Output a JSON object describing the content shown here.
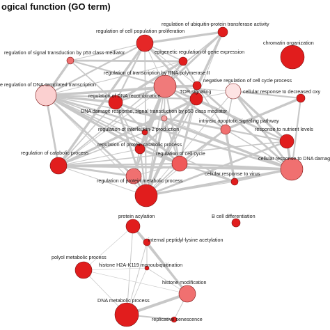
{
  "title": "ogical function (GO term)",
  "colors": {
    "edge": "#c8c8c8",
    "node_stroke": "#7a1010",
    "label": "#1a1a1a",
    "node_dark": "#e11d1d",
    "node_mid": "#f05a5a",
    "node_light": "#f6a0a0",
    "node_pale": "#fde3e3"
  },
  "network_top": {
    "nodes": [
      {
        "id": "ubiq",
        "label": "regulation of ubiquitin-protein transferase activity",
        "color": "#e11d1d"
      },
      {
        "id": "cellprolif",
        "label": "regulation of cell population proliferation",
        "color": "#e52727"
      },
      {
        "id": "chromatin",
        "label": "chromatin organization",
        "color": "#e11d1d"
      },
      {
        "id": "p53sig",
        "label": "regulation of signal transduction by p53 class mediator",
        "color": "#f07070"
      },
      {
        "id": "epigen",
        "label": "epigenetic regulation of gene expression",
        "color": "#e11d1d"
      },
      {
        "id": "rnapol",
        "label": "regulation of transcription by RNA polymerase II",
        "color": "#f07a7a"
      },
      {
        "id": "dnatemp",
        "label": "e regulation of DNA-templated transcription",
        "color": "#fbd0d0"
      },
      {
        "id": "negcycle",
        "label": "negative regulation of cell cycle process",
        "color": "#e11d1d"
      },
      {
        "id": "dnarecomb",
        "label": "regulation of DNA recombination",
        "color": "#e11d1d"
      },
      {
        "id": "tor",
        "label": "TOR signaling",
        "color": "#e11d1d"
      },
      {
        "id": "oxy",
        "label": "cellular response to decreased oxy",
        "color": "#fde3e3"
      },
      {
        "id": "oxy_small",
        "label": "",
        "color": "#e11d1d"
      },
      {
        "id": "dnadamage_p53",
        "label": "DNA damage response, signal transduction by p53 class mediator",
        "color": "#f6a0a0"
      },
      {
        "id": "apoptotic",
        "label": "intrinsic apoptotic signaling pathway",
        "color": "#f07070"
      },
      {
        "id": "il2",
        "label": "regulation of interleukin-2 production",
        "color": "#e11d1d"
      },
      {
        "id": "nutrient",
        "label": "response to nutrient levels",
        "color": "#e11d1d"
      },
      {
        "id": "catabolic_prot",
        "label": "regulation of protein catabolic process",
        "color": "#e11d1d"
      },
      {
        "id": "catabolic",
        "label": "regulation of catabolic process",
        "color": "#e11d1d"
      },
      {
        "id": "cellcycle",
        "label": "regulation of cell cycle",
        "color": "#f05a5a"
      },
      {
        "id": "dnastim",
        "label": "cellular response to DNA damage sti",
        "color": "#f07070"
      },
      {
        "id": "cellcycle2",
        "label": "",
        "color": "#f07070"
      },
      {
        "id": "virus",
        "label": "cellular response to virus",
        "color": "#e11d1d"
      },
      {
        "id": "protmetab",
        "label": "regulation of protein metabolic process",
        "color": "#e11d1d"
      }
    ]
  },
  "network_bottom": {
    "nodes": [
      {
        "id": "acyl",
        "label": "protein acylation",
        "color": "#e11d1d"
      },
      {
        "id": "bcell",
        "label": "B cell differentiation",
        "color": "#e11d1d"
      },
      {
        "id": "lysine",
        "label": "internal peptidyl-lysine acetylation",
        "color": "#e11d1d"
      },
      {
        "id": "polyol",
        "label": "polyol metabolic process",
        "color": "#e11d1d"
      },
      {
        "id": "h2a",
        "label": "histone H2A-K119 monoubiquitination",
        "color": "#e11d1d"
      },
      {
        "id": "histmod",
        "label": "histone modification",
        "color": "#f07070"
      },
      {
        "id": "dnametab",
        "label": "DNA metabolic process",
        "color": "#e11d1d"
      },
      {
        "id": "senescence",
        "label": "replicative senescence",
        "color": "#e11d1d"
      }
    ]
  }
}
